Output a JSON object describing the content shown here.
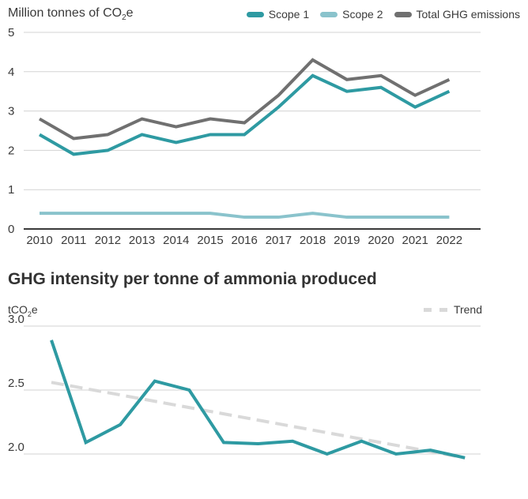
{
  "colors": {
    "scope1": "#2e9aa2",
    "scope2": "#8ac3cc",
    "total": "#707070",
    "intensity": "#2e9aa2",
    "trend": "#d9d9d9",
    "grid": "#d3d3d3",
    "axis": "#3a3a3a"
  },
  "chart_data": [
    {
      "type": "line",
      "title": "Million tonnes of CO2e",
      "ylabel_main": "Million tonnes of CO",
      "ylabel_sub": "2",
      "ylabel_suffix": "e",
      "x": [
        "2010",
        "2011",
        "2012",
        "2013",
        "2014",
        "2015",
        "2016",
        "2017",
        "2018",
        "2019",
        "2020",
        "2021",
        "2022"
      ],
      "ylim": [
        0,
        5
      ],
      "yticks": [
        "0",
        "1",
        "2",
        "3",
        "4",
        "5"
      ],
      "grid": true,
      "legend_position": "top-right",
      "series": [
        {
          "name": "Scope 1",
          "values": [
            2.4,
            1.9,
            2.0,
            2.4,
            2.2,
            2.4,
            2.4,
            3.1,
            3.9,
            3.5,
            3.6,
            3.1,
            3.5
          ]
        },
        {
          "name": "Scope 2",
          "values": [
            0.4,
            0.4,
            0.4,
            0.4,
            0.4,
            0.4,
            0.3,
            0.3,
            0.4,
            0.3,
            0.3,
            0.3,
            0.3
          ]
        },
        {
          "name": "Total GHG emissions",
          "values": [
            2.8,
            2.3,
            2.4,
            2.8,
            2.6,
            2.8,
            2.7,
            3.4,
            4.3,
            3.8,
            3.9,
            3.4,
            3.8
          ]
        }
      ]
    },
    {
      "type": "line",
      "title": "GHG intensity per tonne of ammonia produced",
      "ylabel_main": "tCO",
      "ylabel_sub": "2",
      "ylabel_suffix": "e",
      "ylim_visible": [
        2.0,
        3.0
      ],
      "yticks": [
        "3.0",
        "2.5",
        "2.0"
      ],
      "grid": true,
      "legend_position": "top-right",
      "series": [
        {
          "values": [
            2.89,
            2.09,
            2.23,
            2.57,
            2.5,
            2.09,
            2.08,
            2.1,
            2.0,
            2.1,
            2.0,
            2.03,
            1.97
          ]
        },
        {
          "name": "Trend",
          "values": [
            2.56,
            1.97
          ]
        }
      ]
    }
  ]
}
